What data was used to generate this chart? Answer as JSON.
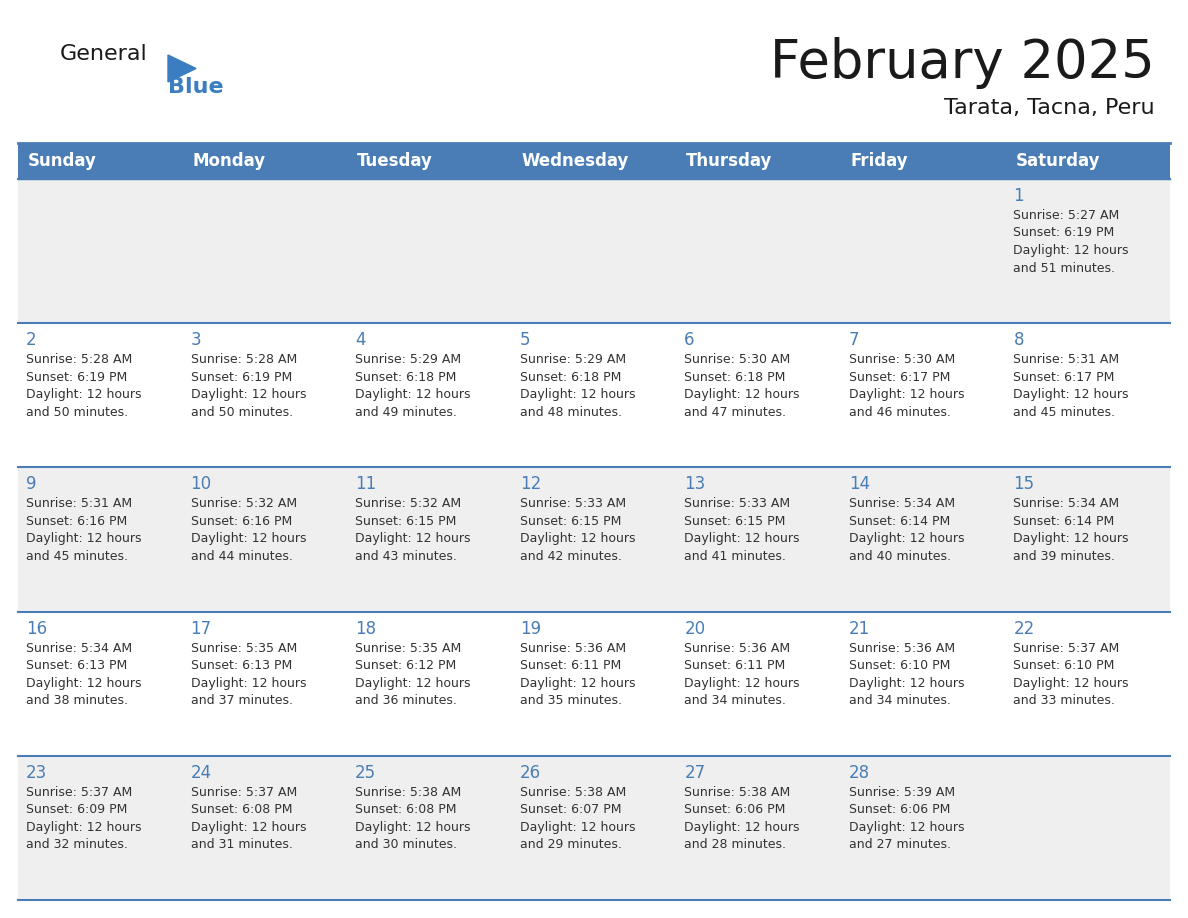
{
  "title": "February 2025",
  "subtitle": "Tarata, Tacna, Peru",
  "header_color": "#4A7DB5",
  "header_text_color": "#FFFFFF",
  "day_names": [
    "Sunday",
    "Monday",
    "Tuesday",
    "Wednesday",
    "Thursday",
    "Friday",
    "Saturday"
  ],
  "background_color": "#FFFFFF",
  "cell_bg_row0": "#EFEFEF",
  "cell_bg_row1": "#FFFFFF",
  "cell_bg_row2": "#EFEFEF",
  "cell_bg_row3": "#FFFFFF",
  "cell_bg_row4": "#EFEFEF",
  "border_color": "#4A7DB5",
  "number_color": "#4A7DB5",
  "text_color": "#333333",
  "logo_general_color": "#1a1a1a",
  "logo_blue_color": "#3A7DC0",
  "logo_triangle_color": "#3A7DC0",
  "days": [
    {
      "day": 1,
      "col": 6,
      "row": 0,
      "sunrise": "5:27 AM",
      "sunset": "6:19 PM",
      "daylight": "12 hours and 51 minutes"
    },
    {
      "day": 2,
      "col": 0,
      "row": 1,
      "sunrise": "5:28 AM",
      "sunset": "6:19 PM",
      "daylight": "12 hours and 50 minutes"
    },
    {
      "day": 3,
      "col": 1,
      "row": 1,
      "sunrise": "5:28 AM",
      "sunset": "6:19 PM",
      "daylight": "12 hours and 50 minutes"
    },
    {
      "day": 4,
      "col": 2,
      "row": 1,
      "sunrise": "5:29 AM",
      "sunset": "6:18 PM",
      "daylight": "12 hours and 49 minutes"
    },
    {
      "day": 5,
      "col": 3,
      "row": 1,
      "sunrise": "5:29 AM",
      "sunset": "6:18 PM",
      "daylight": "12 hours and 48 minutes"
    },
    {
      "day": 6,
      "col": 4,
      "row": 1,
      "sunrise": "5:30 AM",
      "sunset": "6:18 PM",
      "daylight": "12 hours and 47 minutes"
    },
    {
      "day": 7,
      "col": 5,
      "row": 1,
      "sunrise": "5:30 AM",
      "sunset": "6:17 PM",
      "daylight": "12 hours and 46 minutes"
    },
    {
      "day": 8,
      "col": 6,
      "row": 1,
      "sunrise": "5:31 AM",
      "sunset": "6:17 PM",
      "daylight": "12 hours and 45 minutes"
    },
    {
      "day": 9,
      "col": 0,
      "row": 2,
      "sunrise": "5:31 AM",
      "sunset": "6:16 PM",
      "daylight": "12 hours and 45 minutes"
    },
    {
      "day": 10,
      "col": 1,
      "row": 2,
      "sunrise": "5:32 AM",
      "sunset": "6:16 PM",
      "daylight": "12 hours and 44 minutes"
    },
    {
      "day": 11,
      "col": 2,
      "row": 2,
      "sunrise": "5:32 AM",
      "sunset": "6:15 PM",
      "daylight": "12 hours and 43 minutes"
    },
    {
      "day": 12,
      "col": 3,
      "row": 2,
      "sunrise": "5:33 AM",
      "sunset": "6:15 PM",
      "daylight": "12 hours and 42 minutes"
    },
    {
      "day": 13,
      "col": 4,
      "row": 2,
      "sunrise": "5:33 AM",
      "sunset": "6:15 PM",
      "daylight": "12 hours and 41 minutes"
    },
    {
      "day": 14,
      "col": 5,
      "row": 2,
      "sunrise": "5:34 AM",
      "sunset": "6:14 PM",
      "daylight": "12 hours and 40 minutes"
    },
    {
      "day": 15,
      "col": 6,
      "row": 2,
      "sunrise": "5:34 AM",
      "sunset": "6:14 PM",
      "daylight": "12 hours and 39 minutes"
    },
    {
      "day": 16,
      "col": 0,
      "row": 3,
      "sunrise": "5:34 AM",
      "sunset": "6:13 PM",
      "daylight": "12 hours and 38 minutes"
    },
    {
      "day": 17,
      "col": 1,
      "row": 3,
      "sunrise": "5:35 AM",
      "sunset": "6:13 PM",
      "daylight": "12 hours and 37 minutes"
    },
    {
      "day": 18,
      "col": 2,
      "row": 3,
      "sunrise": "5:35 AM",
      "sunset": "6:12 PM",
      "daylight": "12 hours and 36 minutes"
    },
    {
      "day": 19,
      "col": 3,
      "row": 3,
      "sunrise": "5:36 AM",
      "sunset": "6:11 PM",
      "daylight": "12 hours and 35 minutes"
    },
    {
      "day": 20,
      "col": 4,
      "row": 3,
      "sunrise": "5:36 AM",
      "sunset": "6:11 PM",
      "daylight": "12 hours and 34 minutes"
    },
    {
      "day": 21,
      "col": 5,
      "row": 3,
      "sunrise": "5:36 AM",
      "sunset": "6:10 PM",
      "daylight": "12 hours and 34 minutes"
    },
    {
      "day": 22,
      "col": 6,
      "row": 3,
      "sunrise": "5:37 AM",
      "sunset": "6:10 PM",
      "daylight": "12 hours and 33 minutes"
    },
    {
      "day": 23,
      "col": 0,
      "row": 4,
      "sunrise": "5:37 AM",
      "sunset": "6:09 PM",
      "daylight": "12 hours and 32 minutes"
    },
    {
      "day": 24,
      "col": 1,
      "row": 4,
      "sunrise": "5:37 AM",
      "sunset": "6:08 PM",
      "daylight": "12 hours and 31 minutes"
    },
    {
      "day": 25,
      "col": 2,
      "row": 4,
      "sunrise": "5:38 AM",
      "sunset": "6:08 PM",
      "daylight": "12 hours and 30 minutes"
    },
    {
      "day": 26,
      "col": 3,
      "row": 4,
      "sunrise": "5:38 AM",
      "sunset": "6:07 PM",
      "daylight": "12 hours and 29 minutes"
    },
    {
      "day": 27,
      "col": 4,
      "row": 4,
      "sunrise": "5:38 AM",
      "sunset": "6:06 PM",
      "daylight": "12 hours and 28 minutes"
    },
    {
      "day": 28,
      "col": 5,
      "row": 4,
      "sunrise": "5:39 AM",
      "sunset": "6:06 PM",
      "daylight": "12 hours and 27 minutes"
    }
  ]
}
